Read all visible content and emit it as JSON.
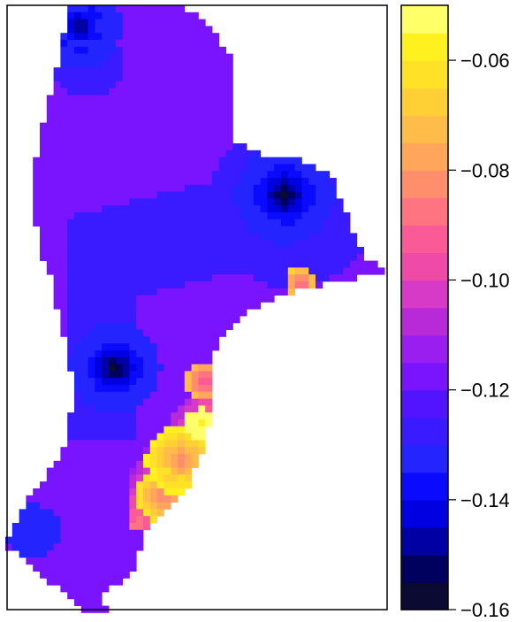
{
  "chart_data": {
    "type": "heatmap",
    "title": "",
    "xlabel": "",
    "ylabel": "",
    "colorbar": {
      "range": [
        -0.16,
        -0.05
      ],
      "bins": [
        {
          "from": -0.16,
          "to": -0.155,
          "color": "#0a0a33"
        },
        {
          "from": -0.155,
          "to": -0.15,
          "color": "#00005e"
        },
        {
          "from": -0.15,
          "to": -0.145,
          "color": "#0000a3"
        },
        {
          "from": -0.145,
          "to": -0.14,
          "color": "#0000e0"
        },
        {
          "from": -0.14,
          "to": -0.135,
          "color": "#0a0aff"
        },
        {
          "from": -0.135,
          "to": -0.13,
          "color": "#2424ff"
        },
        {
          "from": -0.13,
          "to": -0.125,
          "color": "#3a1aff"
        },
        {
          "from": -0.125,
          "to": -0.12,
          "color": "#5214ff"
        },
        {
          "from": -0.12,
          "to": -0.115,
          "color": "#7a14ff"
        },
        {
          "from": -0.115,
          "to": -0.11,
          "color": "#9a1ef0"
        },
        {
          "from": -0.11,
          "to": -0.105,
          "color": "#b82ad8"
        },
        {
          "from": -0.105,
          "to": -0.1,
          "color": "#d83ac8"
        },
        {
          "from": -0.1,
          "to": -0.095,
          "color": "#ef4aa8"
        },
        {
          "from": -0.095,
          "to": -0.09,
          "color": "#fa5a96"
        },
        {
          "from": -0.09,
          "to": -0.085,
          "color": "#ff7480"
        },
        {
          "from": -0.085,
          "to": -0.08,
          "color": "#ff8e6c"
        },
        {
          "from": -0.08,
          "to": -0.075,
          "color": "#ffa65a"
        },
        {
          "from": -0.075,
          "to": -0.07,
          "color": "#ffbc48"
        },
        {
          "from": -0.07,
          "to": -0.065,
          "color": "#ffd036"
        },
        {
          "from": -0.065,
          "to": -0.06,
          "color": "#ffe228"
        },
        {
          "from": -0.06,
          "to": -0.055,
          "color": "#fff020"
        },
        {
          "from": -0.055,
          "to": -0.05,
          "color": "#ffff6a"
        }
      ],
      "ticks": [
        {
          "value": -0.16,
          "label": "−0.16"
        },
        {
          "value": -0.14,
          "label": "−0.14"
        },
        {
          "value": -0.12,
          "label": "−0.12"
        },
        {
          "value": -0.1,
          "label": "−0.10"
        },
        {
          "value": -0.08,
          "label": "−0.08"
        },
        {
          "value": -0.06,
          "label": "−0.06"
        }
      ]
    },
    "field": {
      "base_value": -0.12,
      "notes": "Map-shaped raster of values on a grid; regions approximated.",
      "regions": [
        {
          "kind": "low",
          "value": -0.156
        },
        {
          "kind": "low",
          "value": -0.156
        },
        {
          "kind": "low",
          "value": -0.15
        },
        {
          "kind": "high",
          "value": -0.065
        },
        {
          "kind": "high",
          "value": -0.09
        },
        {
          "kind": "high",
          "value": -0.1
        }
      ]
    }
  }
}
